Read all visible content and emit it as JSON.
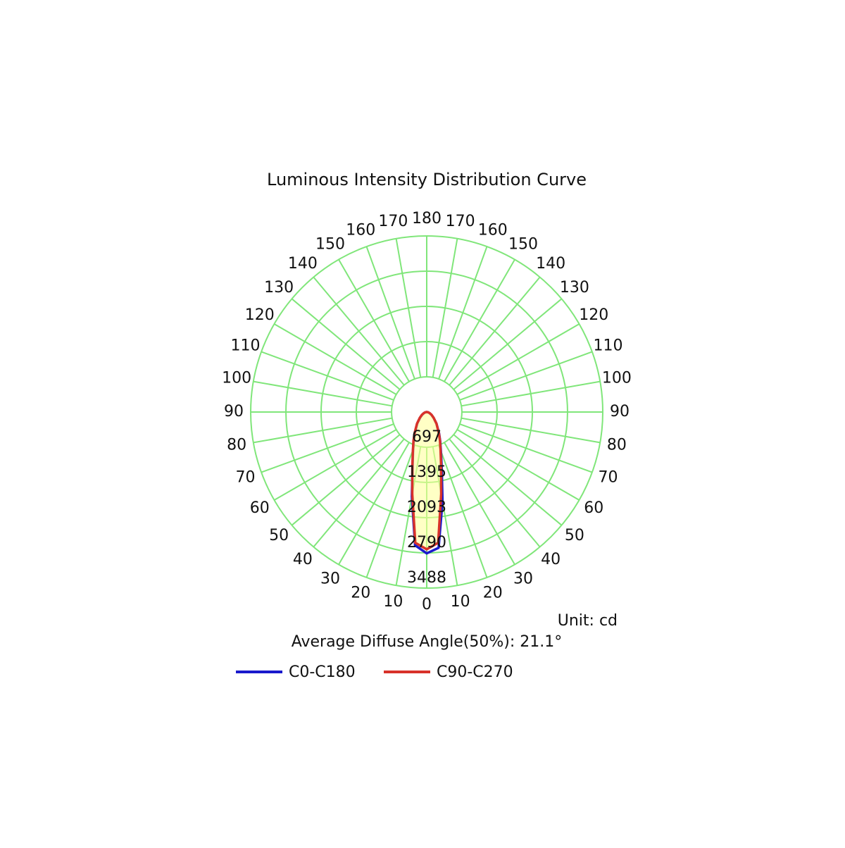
{
  "chart_data": {
    "type": "polar",
    "title": "Luminous Intensity Distribution Curve",
    "unit_label": "Unit: cd",
    "note": "Average Diffuse Angle(50%): 21.1°",
    "rlim": [
      0,
      3488
    ],
    "rticks": [
      697,
      1395,
      2093,
      2790,
      3488
    ],
    "angle_ticks": [
      0,
      10,
      20,
      30,
      40,
      50,
      60,
      70,
      80,
      90,
      100,
      110,
      120,
      130,
      140,
      150,
      160,
      170,
      180
    ],
    "x": [
      -90,
      -80,
      -70,
      -60,
      -50,
      -40,
      -30,
      -25,
      -20,
      -15,
      -10,
      -5,
      0,
      5,
      10,
      15,
      20,
      25,
      30,
      40,
      50,
      60,
      70,
      80,
      90
    ],
    "series": [
      {
        "name": "C0-C180",
        "color": "#1a1acc",
        "values": [
          0,
          25,
          55,
          100,
          170,
          290,
          470,
          610,
          790,
          1080,
          1700,
          2650,
          2800,
          2700,
          1800,
          1150,
          820,
          630,
          490,
          300,
          175,
          105,
          55,
          25,
          0
        ]
      },
      {
        "name": "C90-C270",
        "color": "#d8322a",
        "values": [
          0,
          30,
          60,
          110,
          180,
          300,
          480,
          620,
          800,
          1100,
          1650,
          2600,
          2720,
          2600,
          1650,
          1100,
          800,
          620,
          480,
          300,
          180,
          110,
          60,
          30,
          0
        ]
      }
    ]
  }
}
